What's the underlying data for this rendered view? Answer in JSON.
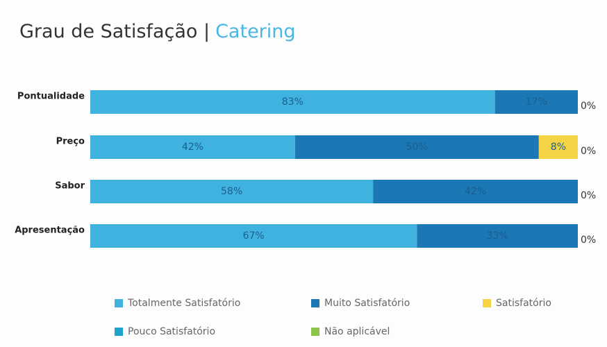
{
  "chart_data": {
    "type": "stacked_bar_horizontal",
    "title": "Grau de Satisfação |",
    "title_highlight": "Catering",
    "categories": [
      "Pontualidade",
      "Preço",
      "Sabor",
      "Apresentação"
    ],
    "xlim": [
      0,
      100
    ],
    "series": [
      {
        "name": "Totalmente Satisfatório",
        "color": "#3fb2e0",
        "values": [
          83,
          42,
          58,
          67
        ],
        "value_labels": [
          "83%",
          "42%",
          "58%",
          "67%"
        ]
      },
      {
        "name": "Muito Satisfatório",
        "color": "#1c78b5",
        "values": [
          17,
          50,
          42,
          33
        ],
        "value_labels": [
          "17%",
          "50%",
          "42%",
          "33%"
        ]
      },
      {
        "name": "Satisfatório",
        "color": "#f4d444",
        "values": [
          0,
          8,
          0,
          0
        ],
        "value_labels": [
          null,
          "8%",
          null,
          null
        ]
      },
      {
        "name": "Pouco Satisfatório",
        "color": "#1fa2cc",
        "values": [
          0,
          0,
          0,
          0
        ],
        "value_labels": [
          null,
          null,
          null,
          null
        ]
      },
      {
        "name": "Não aplicável",
        "color": "#8cc34b",
        "values": [
          0,
          0,
          0,
          0
        ],
        "value_labels": [
          "0%",
          "0%",
          "0%",
          "0%"
        ]
      }
    ]
  }
}
